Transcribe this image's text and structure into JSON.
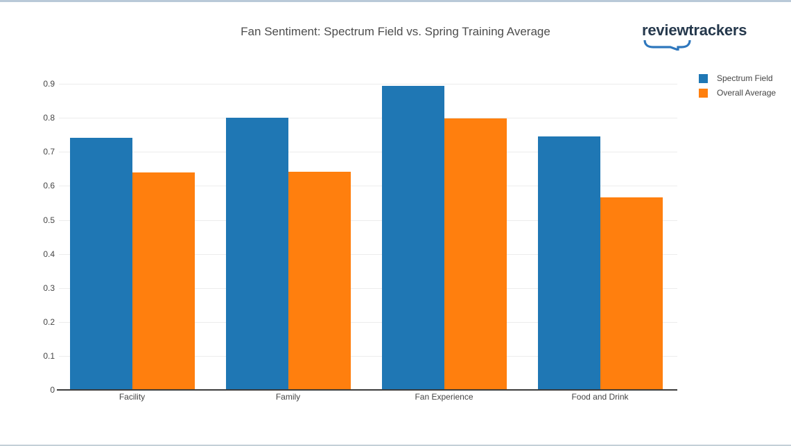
{
  "window": {
    "top_border_color": "#b9c9d8",
    "bottom_border_color": "#c3cfd7"
  },
  "header": {
    "logo_text": "reviewtrackers"
  },
  "icons": {
    "logo_bracket": "speech-bubble-underbrace"
  },
  "colors": {
    "text": "#444444",
    "gridline": "#ececec",
    "axis_line": "#3b3b3b",
    "logo_text": "#25384c",
    "logo_bracket": "#2e77bd",
    "series_blue": "#1f77b4",
    "series_orange": "#ff7f0e"
  },
  "chart_data": {
    "type": "bar",
    "title": "Fan Sentiment: Spectrum Field vs. Spring Training Average",
    "categories": [
      "Facility",
      "Family",
      "Fan Experience",
      "Food and Drink"
    ],
    "series": [
      {
        "name": "Spectrum Field",
        "color": "#1f77b4",
        "values": [
          0.741,
          0.8,
          0.894,
          0.745
        ]
      },
      {
        "name": "Overall Average",
        "color": "#ff7f0e",
        "values": [
          0.639,
          0.641,
          0.798,
          0.566
        ]
      }
    ],
    "xlabel": "",
    "ylabel": "",
    "yticks": [
      0,
      0.1,
      0.2,
      0.3,
      0.4,
      0.5,
      0.6,
      0.7,
      0.8,
      0.9
    ],
    "ylim": [
      0,
      0.943
    ],
    "grid": true,
    "legend_position": "top-right"
  }
}
